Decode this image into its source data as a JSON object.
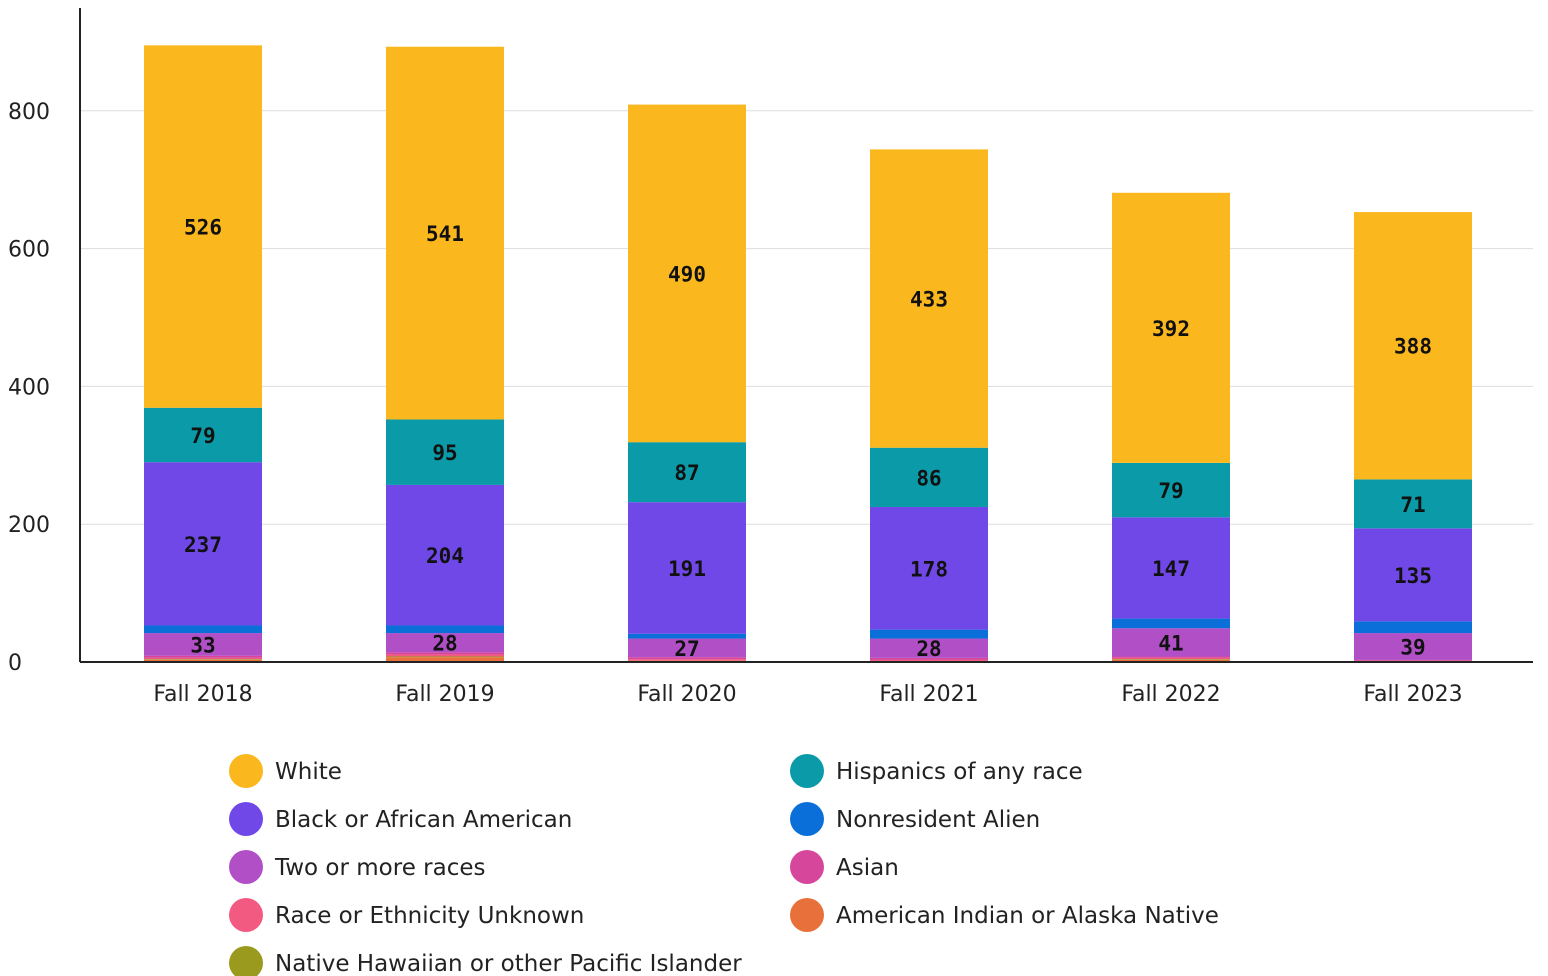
{
  "chart_data": {
    "type": "bar",
    "stacked": true,
    "title": "",
    "xlabel": "",
    "ylabel": "",
    "ylim": [
      0,
      900
    ],
    "yticks": [
      0,
      200,
      400,
      600,
      800
    ],
    "grid": true,
    "legend_position": "bottom",
    "categories": [
      "Fall 2018",
      "Fall 2019",
      "Fall 2020",
      "Fall 2021",
      "Fall 2022",
      "Fall 2023"
    ],
    "series": [
      {
        "name": "American Indian or Alaska Native",
        "color": "#E8703A",
        "values": [
          3,
          7,
          2,
          1,
          3,
          1
        ],
        "labels": [
          "",
          "",
          "",
          "",
          "",
          ""
        ]
      },
      {
        "name": "Native Hawaiian or other Pacific Islander",
        "color": "#9A9A1E",
        "values": [
          1,
          1,
          0,
          0,
          1,
          0
        ],
        "labels": [
          "",
          "",
          "",
          "",
          "",
          ""
        ]
      },
      {
        "name": "Race or Ethnicity Unknown",
        "color": "#F25A82",
        "values": [
          2,
          3,
          2,
          2,
          2,
          1
        ],
        "labels": [
          "",
          "",
          "",
          "",
          "",
          ""
        ]
      },
      {
        "name": "Asian",
        "color": "#D6479C",
        "values": [
          3,
          3,
          3,
          3,
          2,
          1
        ],
        "labels": [
          "",
          "",
          "",
          "",
          "",
          ""
        ]
      },
      {
        "name": "Two or more races",
        "color": "#B04FC6",
        "values": [
          33,
          28,
          27,
          28,
          41,
          39
        ],
        "labels": [
          "33",
          "28",
          "27",
          "28",
          "41",
          "39"
        ]
      },
      {
        "name": "Nonresident Alien",
        "color": "#0A6FD8",
        "values": [
          11,
          11,
          7,
          13,
          14,
          17
        ],
        "labels": [
          "",
          "",
          "",
          "",
          "",
          ""
        ]
      },
      {
        "name": "Black or African American",
        "color": "#7048E8",
        "values": [
          237,
          204,
          191,
          178,
          147,
          135
        ],
        "labels": [
          "237",
          "204",
          "191",
          "178",
          "147",
          "135"
        ]
      },
      {
        "name": "Hispanics of any race",
        "color": "#0A9AA8",
        "values": [
          79,
          95,
          87,
          86,
          79,
          71
        ],
        "labels": [
          "79",
          "95",
          "87",
          "86",
          "79",
          "71"
        ]
      },
      {
        "name": "White",
        "color": "#FBB81E",
        "values": [
          526,
          541,
          490,
          433,
          392,
          388
        ],
        "labels": [
          "526",
          "541",
          "490",
          "433",
          "392",
          "388"
        ]
      }
    ],
    "legend_order": [
      "White",
      "Hispanics of any race",
      "Black or African American",
      "Nonresident Alien",
      "Two or more races",
      "Asian",
      "Race or Ethnicity Unknown",
      "American Indian or Alaska Native",
      "Native Hawaiian or other Pacific Islander"
    ]
  }
}
